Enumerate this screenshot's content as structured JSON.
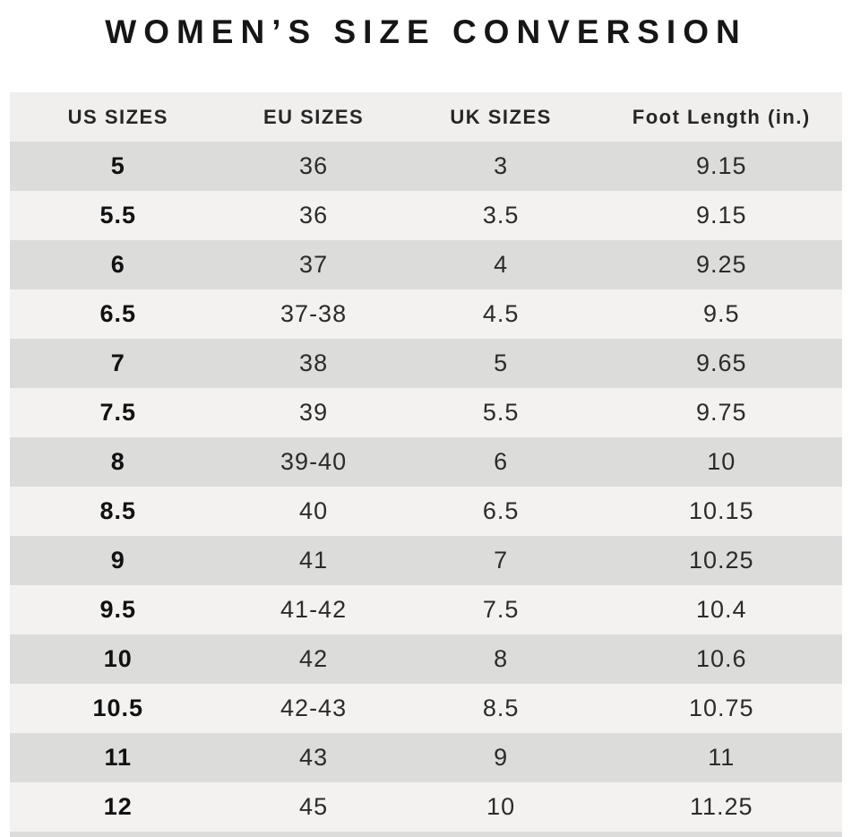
{
  "chart_data": {
    "type": "table",
    "title": "WOMEN’S SIZE CONVERSION",
    "columns": [
      "US SIZES",
      "EU SIZES",
      "UK SIZES",
      "Foot Length (in.)"
    ],
    "rows": [
      [
        "5",
        "36",
        "3",
        "9.15"
      ],
      [
        "5.5",
        "36",
        "3.5",
        "9.15"
      ],
      [
        "6",
        "37",
        "4",
        "9.25"
      ],
      [
        "6.5",
        "37-38",
        "4.5",
        "9.5"
      ],
      [
        "7",
        "38",
        "5",
        "9.65"
      ],
      [
        "7.5",
        "39",
        "5.5",
        "9.75"
      ],
      [
        "8",
        "39-40",
        "6",
        "10"
      ],
      [
        "8.5",
        "40",
        "6.5",
        "10.15"
      ],
      [
        "9",
        "41",
        "7",
        "10.25"
      ],
      [
        "9.5",
        "41-42",
        "7.5",
        "10.4"
      ],
      [
        "10",
        "42",
        "8",
        "10.6"
      ],
      [
        "10.5",
        "42-43",
        "8.5",
        "10.75"
      ],
      [
        "11",
        "43",
        "9",
        "11"
      ],
      [
        "12",
        "45",
        "10",
        "11.25"
      ]
    ]
  },
  "colors": {
    "header_bg": "#f0efee",
    "row_dark": "#dcdcdb",
    "row_light": "#f3f2f1",
    "text": "#2b2b2b",
    "title_text": "#161616"
  }
}
